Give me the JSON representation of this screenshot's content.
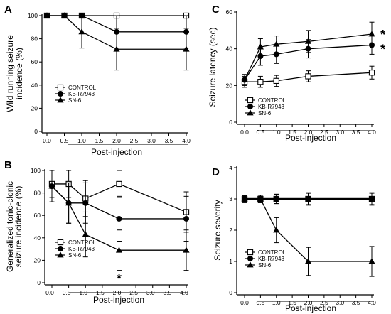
{
  "chart_data": [
    {
      "panel": "A",
      "type": "line",
      "xlabel": "Post-injection",
      "ylabel": "Wild running seizure incidence (%)",
      "ylim": [
        0,
        100
      ],
      "yticks": [
        0,
        20,
        40,
        60,
        80,
        100
      ],
      "xlim": [
        0,
        4
      ],
      "xticks": [
        0.0,
        0.5,
        1.0,
        1.5,
        2.0,
        2.5,
        3.0,
        3.5,
        4.0
      ],
      "xticklabels": [
        "0.0",
        "0.5",
        "1.0",
        "1.5",
        "2.0",
        "2.5",
        "3.0",
        "3.5",
        "4.0"
      ],
      "legend_position": "bottom-left",
      "series": [
        {
          "name": "CONTROL",
          "marker": "open-square",
          "x": [
            0,
            0.5,
            1,
            2,
            4
          ],
          "y": [
            100,
            100,
            100,
            100,
            100
          ],
          "err": [
            0,
            0,
            0,
            0,
            0
          ]
        },
        {
          "name": "KB-R7943",
          "marker": "filled-circle",
          "x": [
            0,
            0.5,
            1,
            2,
            4
          ],
          "y": [
            100,
            100,
            100,
            86,
            86
          ],
          "err": [
            0,
            0,
            0,
            14,
            14
          ]
        },
        {
          "name": "SN-6",
          "marker": "filled-triangle",
          "x": [
            0,
            0.5,
            1,
            2,
            4
          ],
          "y": [
            100,
            100,
            86,
            71,
            71
          ],
          "err": [
            0,
            0,
            14,
            18,
            18
          ]
        }
      ],
      "significance": []
    },
    {
      "panel": "B",
      "type": "line",
      "xlabel": "Post-injection",
      "ylabel": "Generalized tonic-clonic seizure incidence (%)",
      "ylim": [
        0,
        100
      ],
      "yticks": [
        0,
        20,
        40,
        60,
        80,
        100
      ],
      "xlim": [
        0,
        4
      ],
      "xticks": [
        0.0,
        0.5,
        1.0,
        1.5,
        2.0,
        2.5,
        3.0,
        3.5,
        4.0
      ],
      "xticklabels": [
        "0.0",
        "0.5",
        "1.0",
        "1.5",
        "2.0",
        "2.5",
        "3.0",
        "3.5",
        "4.0"
      ],
      "legend_position": "bottom-left",
      "series": [
        {
          "name": "CONTROL",
          "marker": "open-square",
          "x": [
            0,
            0.5,
            1,
            2,
            4
          ],
          "y": [
            88,
            88,
            75,
            88,
            63
          ],
          "err": [
            12,
            12,
            16,
            12,
            18
          ]
        },
        {
          "name": "KB-R7943",
          "marker": "filled-circle",
          "x": [
            0,
            0.5,
            1,
            2,
            4
          ],
          "y": [
            86,
            71,
            71,
            57,
            57
          ],
          "err": [
            14,
            18,
            18,
            20,
            20
          ]
        },
        {
          "name": "SN-6",
          "marker": "filled-triangle",
          "x": [
            0,
            0.5,
            1,
            2,
            4
          ],
          "y": [
            86,
            71,
            43,
            29,
            29
          ],
          "err": [
            14,
            18,
            20,
            18,
            18
          ]
        }
      ],
      "significance": [
        {
          "label": "*",
          "x": 2,
          "y": 4
        }
      ]
    },
    {
      "panel": "C",
      "type": "line",
      "xlabel": "Post-injection",
      "ylabel": "Seizure latency (sec)",
      "ylim": [
        0,
        60
      ],
      "yticks": [
        0,
        20,
        40,
        60
      ],
      "xlim": [
        0,
        4
      ],
      "xticks": [
        0.0,
        0.5,
        1.0,
        1.5,
        2.0,
        2.5,
        3.0,
        3.5,
        4.0
      ],
      "xticklabels": [
        "0.0",
        "0.5",
        "1.0",
        "1.5",
        "2.0",
        "2.5",
        "3.0",
        "3.5",
        "4.0"
      ],
      "legend_position": "bottom-left",
      "series": [
        {
          "name": "CONTROL",
          "marker": "open-square",
          "x": [
            0,
            0.5,
            1,
            2,
            4
          ],
          "y": [
            22,
            22,
            22.5,
            25,
            27
          ],
          "err": [
            3,
            3,
            3,
            3,
            3.5
          ]
        },
        {
          "name": "KB-R7943",
          "marker": "filled-circle",
          "x": [
            0,
            0.5,
            1,
            2,
            4
          ],
          "y": [
            23,
            36,
            37,
            40,
            42
          ],
          "err": [
            3,
            5,
            5,
            5,
            5
          ]
        },
        {
          "name": "SN-6",
          "marker": "filled-triangle",
          "x": [
            0,
            0.5,
            1,
            2,
            4
          ],
          "y": [
            23,
            41,
            42.5,
            44,
            48
          ],
          "err": [
            3,
            4.5,
            4.5,
            6,
            6.5
          ]
        }
      ],
      "significance": [
        {
          "label": "*",
          "x": 4.35,
          "y": 48
        },
        {
          "label": "*",
          "x": 4.35,
          "y": 40
        }
      ]
    },
    {
      "panel": "D",
      "type": "line",
      "xlabel": "Post-injection",
      "ylabel": "Seizure severity",
      "ylim": [
        0,
        4
      ],
      "yticks": [
        0,
        1,
        2,
        3,
        4
      ],
      "xlim": [
        0,
        4
      ],
      "xticks": [
        0.0,
        0.5,
        1.0,
        1.5,
        2.0,
        2.5,
        3.0,
        3.5,
        4.0
      ],
      "xticklabels": [
        "0.0",
        "0.5",
        "1.0",
        "1.5",
        "2.0",
        "2.5",
        "3.0",
        "3.5",
        "4.0"
      ],
      "legend_position": "bottom-left",
      "series": [
        {
          "name": "CONTROL",
          "marker": "open-square",
          "x": [
            0,
            0.5,
            1,
            2,
            4
          ],
          "y": [
            3,
            3,
            3,
            3,
            3
          ],
          "err": [
            0.12,
            0.12,
            0.15,
            0.18,
            0.18
          ]
        },
        {
          "name": "KB-R7943",
          "marker": "filled-circle",
          "x": [
            0,
            0.5,
            1,
            2,
            4
          ],
          "y": [
            3,
            3,
            3,
            3,
            3
          ],
          "err": [
            0.12,
            0.12,
            0.15,
            0.2,
            0.2
          ]
        },
        {
          "name": "SN-6",
          "marker": "filled-triangle",
          "x": [
            0,
            0.5,
            1,
            2,
            4
          ],
          "y": [
            3,
            3,
            2,
            1,
            1
          ],
          "err": [
            0.1,
            0.12,
            0.4,
            0.45,
            0.48
          ]
        }
      ],
      "significance": []
    }
  ]
}
